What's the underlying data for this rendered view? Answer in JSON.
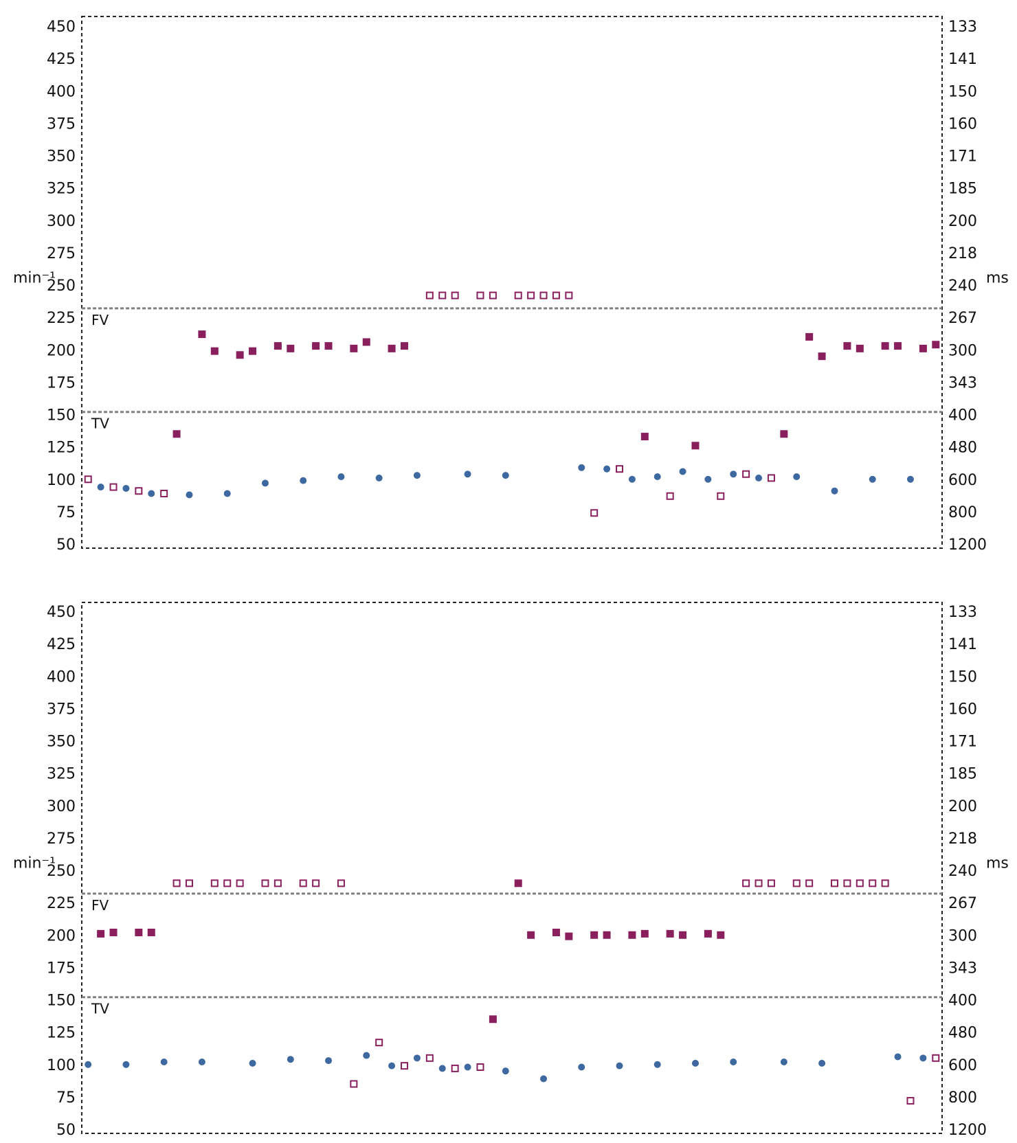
{
  "colors": {
    "sinus_dot": "#3d69a0",
    "ventricular": "#8a1f5e",
    "frame": "#222222",
    "zone_line": "#808080"
  },
  "chart_data": [
    {
      "type": "scatter",
      "units": {
        "left": "min⁻¹",
        "right": "ms"
      },
      "zones": [
        {
          "label": "FV",
          "boundary": 232
        },
        {
          "label": "TV",
          "boundary": 152
        }
      ],
      "yticks_left": [
        "450",
        "425",
        "400",
        "375",
        "350",
        "325",
        "300",
        "275",
        "250",
        "225",
        "200",
        "175",
        "150",
        "125",
        "100",
        "75",
        "50"
      ],
      "yticks_right": [
        "133",
        "141",
        "150",
        "160",
        "171",
        "185",
        "200",
        "218",
        "240",
        "267",
        "300",
        "343",
        "400",
        "480",
        "600",
        "800",
        "1200"
      ],
      "ylim": [
        50,
        450
      ],
      "xlim": [
        0,
        68
      ],
      "series": [
        {
          "marker": "circle",
          "points": [
            [
              1.5,
              94
            ],
            [
              3.5,
              93
            ],
            [
              5.5,
              89
            ],
            [
              8.5,
              88
            ],
            [
              11.5,
              89
            ],
            [
              14.5,
              97
            ],
            [
              17.5,
              99
            ],
            [
              20.5,
              102
            ],
            [
              23.5,
              101
            ],
            [
              26.5,
              103
            ],
            [
              30.5,
              104
            ],
            [
              33.5,
              103
            ],
            [
              39.5,
              109
            ],
            [
              41.5,
              108
            ],
            [
              43.5,
              100
            ],
            [
              45.5,
              102
            ],
            [
              47.5,
              106
            ],
            [
              49.5,
              100
            ],
            [
              51.5,
              104
            ],
            [
              53.5,
              101
            ],
            [
              56.5,
              102
            ],
            [
              59.5,
              91
            ],
            [
              62.5,
              100
            ],
            [
              65.5,
              100
            ]
          ]
        },
        {
          "marker": "open-square",
          "points": [
            [
              0.5,
              100
            ],
            [
              2.5,
              94
            ],
            [
              4.5,
              91
            ],
            [
              6.5,
              89
            ],
            [
              27.5,
              242
            ],
            [
              28.5,
              242
            ],
            [
              29.5,
              242
            ],
            [
              31.5,
              242
            ],
            [
              32.5,
              242
            ],
            [
              34.5,
              242
            ],
            [
              35.5,
              242
            ],
            [
              36.5,
              242
            ],
            [
              37.5,
              242
            ],
            [
              38.5,
              242
            ],
            [
              40.5,
              74
            ],
            [
              42.5,
              108
            ],
            [
              46.5,
              87
            ],
            [
              50.5,
              87
            ],
            [
              52.5,
              104
            ],
            [
              54.5,
              101
            ]
          ]
        },
        {
          "marker": "filled-square",
          "points": [
            [
              7.5,
              135
            ],
            [
              9.5,
              212
            ],
            [
              10.5,
              199
            ],
            [
              12.5,
              196
            ],
            [
              13.5,
              199
            ],
            [
              15.5,
              203
            ],
            [
              16.5,
              201
            ],
            [
              18.5,
              203
            ],
            [
              19.5,
              203
            ],
            [
              21.5,
              201
            ],
            [
              22.5,
              206
            ],
            [
              24.5,
              201
            ],
            [
              25.5,
              203
            ],
            [
              44.5,
              133
            ],
            [
              48.5,
              126
            ],
            [
              55.5,
              135
            ],
            [
              57.5,
              210
            ],
            [
              58.5,
              195
            ],
            [
              60.5,
              203
            ],
            [
              61.5,
              201
            ],
            [
              63.5,
              203
            ],
            [
              64.5,
              203
            ],
            [
              66.5,
              201
            ],
            [
              67.5,
              204
            ]
          ]
        }
      ]
    },
    {
      "type": "scatter",
      "units": {
        "left": "min⁻¹",
        "right": "ms"
      },
      "zones": [
        {
          "label": "FV",
          "boundary": 232
        },
        {
          "label": "TV",
          "boundary": 152
        }
      ],
      "yticks_left": [
        "450",
        "425",
        "400",
        "375",
        "350",
        "325",
        "300",
        "275",
        "250",
        "225",
        "200",
        "175",
        "150",
        "125",
        "100",
        "75",
        "50"
      ],
      "yticks_right": [
        "133",
        "141",
        "150",
        "160",
        "171",
        "185",
        "200",
        "218",
        "240",
        "267",
        "300",
        "343",
        "400",
        "480",
        "600",
        "800",
        "1200"
      ],
      "ylim": [
        50,
        450
      ],
      "xlim": [
        0,
        68
      ],
      "series": [
        {
          "marker": "circle",
          "points": [
            [
              0.5,
              100
            ],
            [
              3.5,
              100
            ],
            [
              6.5,
              102
            ],
            [
              9.5,
              102
            ],
            [
              13.5,
              101
            ],
            [
              16.5,
              104
            ],
            [
              19.5,
              103
            ],
            [
              22.5,
              107
            ],
            [
              24.5,
              99
            ],
            [
              26.5,
              105
            ],
            [
              28.5,
              97
            ],
            [
              30.5,
              98
            ],
            [
              33.5,
              95
            ],
            [
              36.5,
              89
            ],
            [
              39.5,
              98
            ],
            [
              42.5,
              99
            ],
            [
              45.5,
              100
            ],
            [
              48.5,
              101
            ],
            [
              51.5,
              102
            ],
            [
              55.5,
              102
            ],
            [
              58.5,
              101
            ],
            [
              64.5,
              106
            ],
            [
              66.5,
              105
            ]
          ]
        },
        {
          "marker": "open-square",
          "points": [
            [
              7.5,
              240
            ],
            [
              8.5,
              240
            ],
            [
              10.5,
              240
            ],
            [
              11.5,
              240
            ],
            [
              12.5,
              240
            ],
            [
              14.5,
              240
            ],
            [
              15.5,
              240
            ],
            [
              17.5,
              240
            ],
            [
              18.5,
              240
            ],
            [
              20.5,
              240
            ],
            [
              21.5,
              85
            ],
            [
              23.5,
              117
            ],
            [
              25.5,
              99
            ],
            [
              27.5,
              105
            ],
            [
              29.5,
              97
            ],
            [
              31.5,
              98
            ],
            [
              52.5,
              240
            ],
            [
              53.5,
              240
            ],
            [
              54.5,
              240
            ],
            [
              56.5,
              240
            ],
            [
              57.5,
              240
            ],
            [
              59.5,
              240
            ],
            [
              60.5,
              240
            ],
            [
              61.5,
              240
            ],
            [
              62.5,
              240
            ],
            [
              63.5,
              240
            ],
            [
              65.5,
              72
            ],
            [
              67.5,
              105
            ]
          ]
        },
        {
          "marker": "filled-square",
          "points": [
            [
              1.5,
              201
            ],
            [
              2.5,
              202
            ],
            [
              4.5,
              202
            ],
            [
              5.5,
              202
            ],
            [
              32.5,
              135
            ],
            [
              34.5,
              240
            ],
            [
              35.5,
              200
            ],
            [
              37.5,
              202
            ],
            [
              38.5,
              199
            ],
            [
              40.5,
              200
            ],
            [
              41.5,
              200
            ],
            [
              43.5,
              200
            ],
            [
              44.5,
              201
            ],
            [
              46.5,
              201
            ],
            [
              47.5,
              200
            ],
            [
              49.5,
              201
            ],
            [
              50.5,
              200
            ]
          ]
        }
      ]
    }
  ]
}
